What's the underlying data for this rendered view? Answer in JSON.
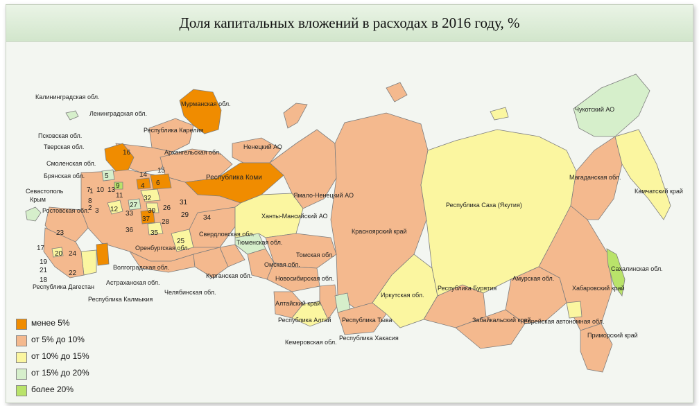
{
  "title": "Доля капитальных вложений в расходах в 2016 году, %",
  "colors": {
    "lt5": "#f08c00",
    "r5_10": "#f4b98e",
    "r10_15": "#fbf6a0",
    "r15_20": "#d6efcb",
    "gt20": "#b9e36a",
    "water": "#f3f6f1",
    "stroke": "#7d7d7d"
  },
  "legend": [
    {
      "label": "менее 5%",
      "color": "#f08c00"
    },
    {
      "label": "от 5% до 10%",
      "color": "#f4b98e"
    },
    {
      "label": "от 10% до 15%",
      "color": "#fbf6a0"
    },
    {
      "label": "от 15% до 20%",
      "color": "#d6efcb"
    },
    {
      "label": "более 20%",
      "color": "#b9e36a"
    }
  ],
  "regions": {
    "kaliningrad": "Калининградская обл.",
    "leningrad": "Ленинградская обл.",
    "murmansk": "Мурманская обл.",
    "karelia": "Республика Карелия",
    "pskov": "Псковская обл.",
    "tver": "Тверская обл.",
    "smolensk": "Смоленская обл.",
    "bryansk": "Брянская обл.",
    "sevastopol": "Севастополь",
    "crimea": "Крым",
    "rostov": "Ростовская обл.",
    "arkhangelsk": "Архангельская обл.",
    "nenets": "Ненецкий АО",
    "komi": "Республика Коми",
    "yamal": "Ямало-Ненецкий АО",
    "khanty": "Ханты-Мансийский АО",
    "krasnoyarsk": "Красноярский край",
    "yakutia": "Республика Саха (Якутия)",
    "chukotka": "Чукотский АО",
    "magadan": "Магаданская обл.",
    "kamchatka": "Камчатский край",
    "sakhalin": "Сахалинская обл.",
    "khabarovsk": "Хабаровский край",
    "amur": "Амурская обл.",
    "evreiskaya": "Еврейская автономная обл.",
    "primorsky": "Приморский край",
    "zabaikal": "Забайкальский край",
    "buryatia": "Республика Бурятия",
    "irkutsk": "Иркутская обл.",
    "tyva": "Республика Тыва",
    "khakasia": "Республика Хакасия",
    "kemerovo": "Кемеровская обл.",
    "altai_rep": "Республика Алтай",
    "altai_krai": "Алтайский край",
    "novosibirsk": "Новосибирская обл.",
    "tomsk": "Томская обл.",
    "omsk": "Омская обл.",
    "tyumen": "Тюменская обл.",
    "kurgan": "Курганская обл.",
    "chelyabinsk": "Челябинская обл.",
    "sverdlovsk": "Свердловская обл.",
    "orenburg": "Оренбургская обл.",
    "volgograd": "Волгоградская обл.",
    "astrakhan": "Астраханская обл.",
    "kalmykia": "Республика Калмыкия",
    "dagestan": "Республика Дагестан"
  },
  "numbers": [
    "1",
    "2",
    "3",
    "4",
    "5",
    "6",
    "7",
    "8",
    "9",
    "10",
    "11",
    "12",
    "13",
    "14",
    "15",
    "16",
    "17",
    "18",
    "19",
    "20",
    "21",
    "22",
    "23",
    "24",
    "25",
    "26",
    "27",
    "28",
    "29",
    "30",
    "31",
    "32",
    "33",
    "34",
    "35",
    "36",
    "37"
  ]
}
